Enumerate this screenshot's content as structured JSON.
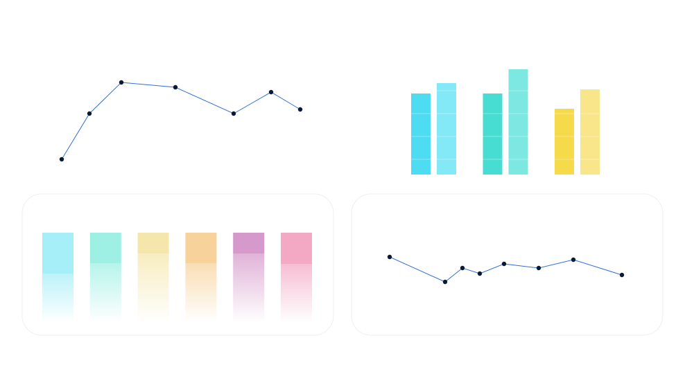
{
  "chart_data": [
    {
      "type": "line",
      "color": "#2f6fd6",
      "marker_color": "#0b1a33",
      "x": [
        0,
        10,
        21.5,
        41,
        62,
        75.5,
        86
      ],
      "values": [
        20,
        86,
        131,
        124,
        86,
        117,
        92
      ],
      "xlim": [
        0,
        86
      ],
      "ylim": [
        0,
        140
      ]
    },
    {
      "type": "grouped-bar",
      "series": [
        {
          "colors": [
            "#4ddcf2",
            "#48ddd3",
            "#f5da4a"
          ],
          "values": [
            117,
            117,
            95
          ]
        },
        {
          "colors": [
            "#84e9f7",
            "#7de8e1",
            "#fae68a"
          ],
          "values": [
            132,
            152,
            123
          ]
        }
      ],
      "ylim": [
        0,
        152
      ]
    },
    {
      "type": "fade-bar",
      "colors": [
        "#a6eef8",
        "#9ef0e4",
        "#f5e6ac",
        "#f7d39b",
        "#d699cb",
        "#f3a8c4"
      ],
      "values": [
        59,
        44,
        30,
        44,
        30,
        45
      ],
      "ylim": [
        0,
        130
      ]
    },
    {
      "type": "line",
      "color": "#2f6fd6",
      "marker_color": "#0b1a33",
      "x": [
        0,
        16,
        21,
        26,
        33,
        43,
        53,
        67
      ],
      "values": [
        49,
        13,
        33,
        25,
        39,
        33,
        45,
        23
      ],
      "xlim": [
        0,
        67
      ],
      "ylim": [
        0,
        60
      ]
    }
  ]
}
